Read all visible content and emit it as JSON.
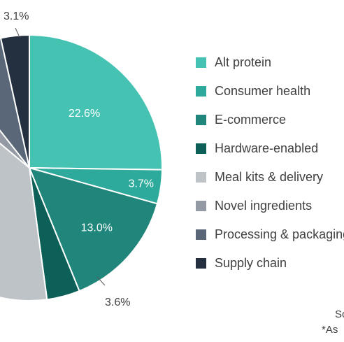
{
  "chart_data": {
    "type": "pie",
    "start_angle_deg": 0,
    "direction": "clockwise",
    "slices": [
      {
        "category": "Alt protein",
        "value": 22.6,
        "label": "22.6%",
        "color": "#46C2B3"
      },
      {
        "category": "Consumer health",
        "value": 3.7,
        "label": "3.7%",
        "color": "#2EAA9C"
      },
      {
        "category": "E-commerce",
        "value": 13.0,
        "label": "13.0%",
        "color": "#20857A"
      },
      {
        "category": "Hardware-enabled",
        "value": 3.6,
        "label": "3.6%",
        "color": "#0D6058"
      },
      {
        "category": "Meal kits & delivery",
        "value": 34.2,
        "label": "",
        "color": "#BEC3C8"
      },
      {
        "category": "Novel ingredients",
        "value": 3.0,
        "label": "",
        "color": "#939AA4"
      },
      {
        "category": "Processing & packaging",
        "value": 6.4,
        "label": "",
        "color": "#596778"
      },
      {
        "category": "Supply chain",
        "value": 3.1,
        "label": "3.1%",
        "color": "#24303F"
      }
    ],
    "legend": {
      "position": "right",
      "entries": [
        "Alt protein",
        "Consumer health",
        "E-commerce",
        "Hardware-enabled",
        "Meal kits & delivery",
        "Novel ingredients",
        "Processing & packaging",
        "Supply chain"
      ]
    }
  },
  "notes": {
    "source_fragment": "So",
    "footnote_fragment": "*As"
  }
}
